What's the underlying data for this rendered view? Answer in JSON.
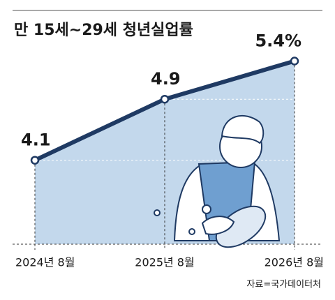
{
  "chart_data": {
    "type": "line",
    "title": "만 15세~29세 청년실업률",
    "categories": [
      "2024년 8월",
      "2025년 8월",
      "2026년 8월"
    ],
    "values": [
      4.1,
      4.9,
      5.4
    ],
    "value_labels": [
      "4.1",
      "4.9",
      "5.4%"
    ],
    "color": "#1f3a63",
    "fill": "#c3d8ec",
    "ylim": [
      3,
      6.2
    ],
    "source": "자료=국가데이터처"
  }
}
